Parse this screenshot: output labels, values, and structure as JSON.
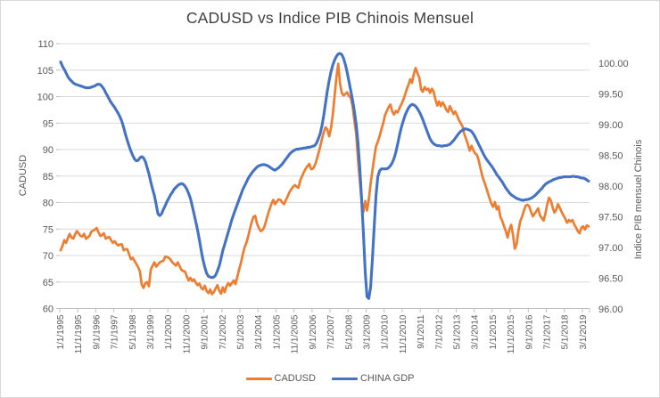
{
  "title": "CADUSD vs Indice PIB Chinois Mensuel",
  "legend": {
    "items": [
      {
        "label": "CADUSD",
        "color": "#ED7D31"
      },
      {
        "label": "CHINA GDP",
        "color": "#4472C4"
      }
    ]
  },
  "colors": {
    "cadusd_line": "#ED7D31",
    "china_gdp_line": "#4472C4",
    "gridline": "#D9D9D9",
    "axis_line": "#BFBFBF",
    "axis_text": "#595959",
    "title_text": "#404040",
    "chart_border": "#D9D9D9"
  },
  "chart_data": {
    "type": "line",
    "title": "CADUSD vs Indice PIB Chinois Mensuel",
    "frequency": "monthly",
    "x_start": "1/1/1995",
    "x_end": "6/1/2019",
    "n_points": 294,
    "grid": "horizontal-only",
    "legend_position": "bottom",
    "x_tick_labels": [
      "1/1/1995",
      "11/1/1995",
      "9/1/1996",
      "7/1/1997",
      "5/1/1998",
      "3/1/1999",
      "1/1/2000",
      "11/1/2000",
      "9/1/2001",
      "7/1/2002",
      "5/1/2003",
      "3/1/2004",
      "1/1/2005",
      "11/1/2005",
      "9/1/2006",
      "7/1/2007",
      "5/1/2008",
      "3/1/2009",
      "1/1/2010",
      "11/1/2010",
      "9/1/2011",
      "7/1/2012",
      "5/1/2013",
      "3/1/2014",
      "1/1/2015",
      "11/1/2015",
      "9/1/2016",
      "7/1/2017",
      "5/1/2018",
      "3/1/2019"
    ],
    "x_ticks_every_n_points": 10,
    "left_axis": {
      "title": "CADUSD",
      "min": 60,
      "max": 110,
      "step": 5
    },
    "right_axis": {
      "title": "Indice PIB mensuel  Chinois",
      "min": 96.0,
      "label_max": 100.0,
      "step": 0.5,
      "top_of_plot_value": 100.31
    },
    "series": [
      {
        "name": "CADUSD",
        "axis": "left",
        "color": "#ED7D31",
        "values": [
          71.0,
          71.8,
          72.9,
          72.4,
          73.3,
          74.1,
          73.4,
          73.2,
          74.0,
          74.6,
          74.2,
          73.7,
          73.6,
          74.1,
          73.2,
          73.4,
          73.7,
          74.5,
          74.7,
          74.9,
          75.2,
          74.4,
          73.7,
          73.9,
          74.2,
          73.2,
          73.4,
          73.5,
          72.9,
          72.4,
          72.7,
          72.2,
          71.9,
          72.1,
          72.1,
          71.0,
          71.2,
          71.2,
          70.2,
          69.3,
          69.6,
          69.0,
          68.4,
          67.8,
          67.0,
          64.5,
          63.9,
          64.8,
          65.0,
          64.2,
          67.3,
          68.1,
          68.7,
          67.9,
          68.3,
          68.7,
          68.9,
          69.0,
          69.8,
          69.7,
          69.6,
          69.2,
          68.7,
          68.4,
          68.1,
          68.7,
          68.0,
          67.3,
          67.1,
          67.0,
          66.1,
          65.3,
          65.8,
          65.2,
          65.5,
          64.9,
          64.4,
          64.7,
          63.9,
          63.6,
          64.3,
          63.3,
          62.9,
          63.6,
          62.7,
          63.1,
          63.8,
          64.4,
          63.4,
          62.8,
          64.0,
          63.1,
          64.2,
          64.8,
          64.3,
          64.8,
          65.3,
          64.6,
          65.9,
          67.3,
          68.6,
          70.1,
          71.5,
          72.3,
          73.5,
          75.0,
          76.3,
          77.3,
          77.5,
          76.0,
          75.2,
          74.6,
          74.8,
          75.4,
          76.5,
          77.8,
          78.8,
          79.8,
          80.5,
          79.7,
          80.2,
          80.6,
          80.5,
          80.0,
          79.7,
          80.5,
          81.2,
          82.0,
          82.5,
          83.0,
          83.3,
          83.0,
          82.8,
          84.2,
          85.0,
          85.8,
          86.4,
          86.9,
          87.3,
          86.3,
          86.4,
          87.0,
          88.0,
          89.2,
          90.5,
          92.0,
          93.3,
          94.2,
          93.8,
          92.5,
          94.0,
          96.5,
          100.0,
          103.5,
          106.2,
          102.5,
          100.7,
          100.2,
          100.5,
          100.8,
          100.1,
          99.8,
          98.2,
          95.5,
          92.9,
          88.1,
          84.2,
          80.2,
          78.2,
          80.3,
          78.5,
          80.5,
          83.5,
          86.0,
          88.5,
          90.6,
          91.5,
          92.5,
          93.8,
          95.0,
          96.5,
          97.3,
          98.0,
          98.5,
          97.2,
          96.6,
          97.3,
          97.0,
          97.8,
          98.5,
          99.3,
          100.2,
          101.3,
          102.2,
          103.3,
          102.6,
          104.3,
          105.4,
          104.4,
          103.6,
          101.4,
          100.9,
          101.8,
          101.3,
          101.5,
          100.7,
          101.5,
          100.9,
          99.4,
          98.3,
          99.1,
          98.2,
          98.9,
          98.3,
          97.5,
          97.1,
          98.2,
          97.5,
          96.7,
          97.2,
          96.4,
          95.6,
          95.0,
          94.4,
          92.9,
          92.0,
          91.0,
          89.8,
          90.7,
          89.9,
          89.3,
          89.0,
          88.0,
          86.4,
          85.0,
          84.0,
          83.0,
          81.9,
          80.8,
          79.8,
          79.2,
          80.1,
          78.7,
          79.3,
          77.3,
          76.6,
          75.6,
          74.6,
          73.4,
          74.9,
          75.8,
          74.0,
          71.3,
          72.1,
          74.6,
          76.4,
          77.3,
          78.4,
          79.4,
          79.6,
          79.3,
          78.3,
          77.4,
          77.9,
          78.4,
          78.9,
          77.6,
          77.1,
          76.6,
          77.9,
          79.6,
          80.9,
          80.4,
          79.1,
          78.1,
          78.6,
          79.7,
          79.0,
          78.2,
          77.6,
          77.0,
          76.2,
          76.7,
          76.4,
          76.7,
          75.9,
          75.3,
          74.6,
          74.2,
          75.3,
          75.5,
          74.9,
          75.7,
          75.5
        ]
      },
      {
        "name": "CHINA GDP",
        "axis": "right",
        "color": "#4472C4",
        "values": [
          100.02,
          99.95,
          99.9,
          99.84,
          99.78,
          99.74,
          99.71,
          99.68,
          99.66,
          99.65,
          99.64,
          99.63,
          99.62,
          99.61,
          99.6,
          99.6,
          99.6,
          99.61,
          99.62,
          99.63,
          99.65,
          99.66,
          99.65,
          99.62,
          99.58,
          99.52,
          99.47,
          99.41,
          99.36,
          99.32,
          99.28,
          99.23,
          99.18,
          99.12,
          99.05,
          98.95,
          98.84,
          98.74,
          98.65,
          98.57,
          98.5,
          98.44,
          98.41,
          98.42,
          98.46,
          98.48,
          98.46,
          98.4,
          98.3,
          98.2,
          98.07,
          97.95,
          97.85,
          97.7,
          97.55,
          97.52,
          97.55,
          97.62,
          97.68,
          97.75,
          97.8,
          97.86,
          97.9,
          97.95,
          97.98,
          98.01,
          98.03,
          98.04,
          98.03,
          98.0,
          97.95,
          97.88,
          97.8,
          97.68,
          97.55,
          97.42,
          97.28,
          97.12,
          96.95,
          96.8,
          96.68,
          96.58,
          96.53,
          96.52,
          96.51,
          96.52,
          96.55,
          96.62,
          96.7,
          96.82,
          96.95,
          97.05,
          97.15,
          97.25,
          97.35,
          97.45,
          97.54,
          97.62,
          97.7,
          97.78,
          97.86,
          97.94,
          98.0,
          98.06,
          98.12,
          98.17,
          98.21,
          98.25,
          98.28,
          98.31,
          98.33,
          98.34,
          98.35,
          98.35,
          98.34,
          98.33,
          98.31,
          98.29,
          98.27,
          98.26,
          98.28,
          98.3,
          98.33,
          98.36,
          98.4,
          98.44,
          98.48,
          98.52,
          98.55,
          98.57,
          98.59,
          98.6,
          98.6,
          98.61,
          98.61,
          98.62,
          98.62,
          98.63,
          98.63,
          98.64,
          98.65,
          98.66,
          98.7,
          98.77,
          98.85,
          98.98,
          99.15,
          99.35,
          99.55,
          99.72,
          99.86,
          99.97,
          100.05,
          100.11,
          100.15,
          100.16,
          100.14,
          100.08,
          99.98,
          99.85,
          99.7,
          99.55,
          99.4,
          99.22,
          99.0,
          98.7,
          98.3,
          97.8,
          97.25,
          96.6,
          96.2,
          96.17,
          96.35,
          96.8,
          97.35,
          97.85,
          98.15,
          98.25,
          98.28,
          98.28,
          98.28,
          98.28,
          98.3,
          98.33,
          98.38,
          98.45,
          98.55,
          98.68,
          98.82,
          98.95,
          99.05,
          99.14,
          99.21,
          99.27,
          99.31,
          99.33,
          99.32,
          99.3,
          99.26,
          99.21,
          99.15,
          99.08,
          99.0,
          98.92,
          98.84,
          98.77,
          98.72,
          98.69,
          98.67,
          98.66,
          98.66,
          98.65,
          98.65,
          98.66,
          98.66,
          98.67,
          98.68,
          98.71,
          98.74,
          98.78,
          98.82,
          98.86,
          98.89,
          98.91,
          98.93,
          98.93,
          98.92,
          98.91,
          98.89,
          98.85,
          98.8,
          98.74,
          98.68,
          98.62,
          98.56,
          98.5,
          98.45,
          98.41,
          98.37,
          98.33,
          98.29,
          98.24,
          98.19,
          98.15,
          98.11,
          98.07,
          98.02,
          97.97,
          97.93,
          97.89,
          97.86,
          97.84,
          97.82,
          97.8,
          97.79,
          97.78,
          97.77,
          97.77,
          97.78,
          97.78,
          97.79,
          97.8,
          97.82,
          97.84,
          97.87,
          97.9,
          97.93,
          97.96,
          98.0,
          98.03,
          98.05,
          98.07,
          98.08,
          98.1,
          98.11,
          98.12,
          98.13,
          98.14,
          98.14,
          98.15,
          98.15,
          98.15,
          98.15,
          98.15,
          98.16,
          98.16,
          98.15,
          98.15,
          98.14,
          98.13,
          98.13,
          98.12,
          98.1,
          98.08
        ]
      }
    ]
  }
}
